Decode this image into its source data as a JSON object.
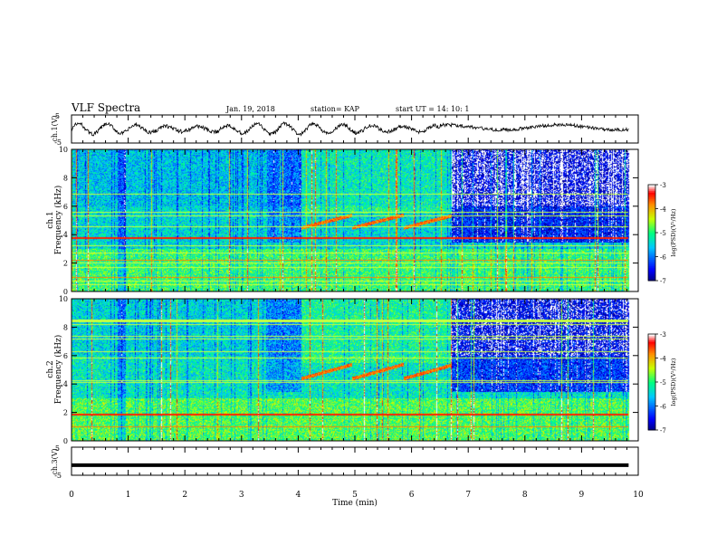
{
  "header": {
    "title": "VLF Spectra",
    "date": "Jan. 19, 2018",
    "station": "station= KAP",
    "start_ut": "start  UT =   14: 10: 1"
  },
  "chart_data": {
    "type": "heatmap",
    "xlabel": "Time  (min)",
    "xlim": [
      0,
      10
    ],
    "x_ticks": [
      "0",
      "1",
      "2",
      "3",
      "4",
      "5",
      "6",
      "7",
      "8",
      "9",
      "10"
    ],
    "panels": [
      {
        "id": "ch1-waveform",
        "type": "line",
        "ylabel": "ch.1(V)",
        "ylim": [
          -5,
          5
        ],
        "y_ticks": [
          "5",
          "-5"
        ]
      },
      {
        "id": "ch1-spectrogram",
        "type": "heatmap",
        "ylabel_line1": "ch.1",
        "ylabel_line2": "Frequency  (kHz)",
        "ylim": [
          0,
          10
        ],
        "y_ticks": [
          "0",
          "2",
          "4",
          "6",
          "8",
          "10"
        ],
        "data_end_min": 9.83,
        "strong_lines_khz": [
          3.8,
          2.2,
          1.0,
          0.5
        ],
        "chorus_emission": {
          "start_min": 4.05,
          "end_min": 6.7,
          "lower_khz": 4.5,
          "upper_khz": 5.4
        },
        "colorbar": {
          "label": "log(PSD)(V²/Hz)",
          "range": [
            -7,
            -3
          ],
          "ticks": [
            "-3",
            "-4",
            "-5",
            "-6",
            "-7"
          ]
        }
      },
      {
        "id": "ch2-spectrogram",
        "type": "heatmap",
        "ylabel_line1": "ch.2",
        "ylabel_line2": "Frequency  (kHz)",
        "ylim": [
          0,
          10
        ],
        "y_ticks": [
          "0",
          "2",
          "4",
          "6",
          "8",
          "10"
        ],
        "data_end_min": 9.83,
        "strong_lines_khz": [
          1.9,
          1.0
        ],
        "chorus_emission": {
          "start_min": 4.05,
          "end_min": 6.7,
          "lower_khz": 4.4,
          "upper_khz": 5.4
        },
        "colorbar": {
          "label": "log(PSD)(V²/Hz)",
          "range": [
            -7,
            -3
          ],
          "ticks": [
            "-3",
            "-4",
            "-5",
            "-6",
            "-7"
          ]
        }
      },
      {
        "id": "ch3-waveform",
        "type": "line",
        "ylabel": "ch.3(V)",
        "ylim": [
          -5,
          5
        ],
        "y_ticks": [
          "5",
          "-5"
        ],
        "constant_value": -1.4
      }
    ],
    "colors": {
      "low": "#00007f",
      "mid": "#00ff80",
      "high": "#ff0000",
      "top": "#ffffff"
    }
  }
}
